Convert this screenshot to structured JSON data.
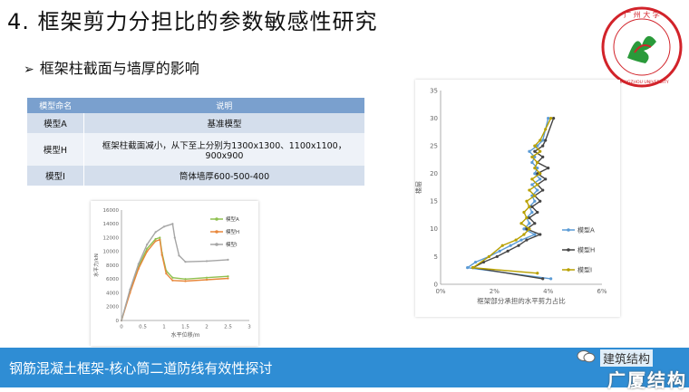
{
  "header": {
    "title": "4.   框架剪力分担比的参数敏感性研究",
    "subtitle_arrow": "➢",
    "subtitle": "框架柱截面与墙厚的影响"
  },
  "logo": {
    "top_text": "广 州 大 学",
    "bottom_text": "GUANGZHOU UNIVERSITY",
    "color": "#d2232a"
  },
  "table": {
    "headers": [
      "模型命名",
      "说明"
    ],
    "rows": [
      [
        "模型A",
        "基准模型"
      ],
      [
        "模型H",
        "框架柱截面减小，从下至上分别为1300x1300、1100x1100，900x900"
      ],
      [
        "模型I",
        "筒体墙厚600-500-400"
      ]
    ]
  },
  "chart_data": [
    {
      "type": "line",
      "xlabel": "水平位移/m",
      "ylabel": "水平力/kN",
      "xlim": [
        0,
        3
      ],
      "ylim": [
        0,
        16000
      ],
      "x_ticks": [
        "0",
        "0.5",
        "1",
        "1.5",
        "2",
        "2.5",
        "3"
      ],
      "y_ticks": [
        "0",
        "2000",
        "4000",
        "6000",
        "8000",
        "10000",
        "12000",
        "14000",
        "16000"
      ],
      "legend_position": "top-right",
      "series": [
        {
          "name": "模型A",
          "color": "#8fc04f",
          "x": [
            0,
            0.2,
            0.4,
            0.6,
            0.8,
            0.9,
            0.95,
            1.05,
            1.2,
            1.5,
            2.0,
            2.5
          ],
          "y": [
            0,
            4300,
            7800,
            10400,
            11800,
            12000,
            9800,
            7200,
            6200,
            6000,
            6200,
            6400
          ]
        },
        {
          "name": "模型H",
          "color": "#e8873a",
          "x": [
            0,
            0.2,
            0.4,
            0.6,
            0.8,
            0.9,
            0.95,
            1.05,
            1.2,
            1.5,
            2.0,
            2.5
          ],
          "y": [
            0,
            4000,
            7500,
            10000,
            11500,
            11700,
            9500,
            6800,
            5800,
            5700,
            5900,
            6100
          ]
        },
        {
          "name": "模型I",
          "color": "#a5a5a5",
          "x": [
            0,
            0.2,
            0.4,
            0.6,
            0.8,
            1.0,
            1.2,
            1.25,
            1.35,
            1.5,
            2.0,
            2.5
          ],
          "y": [
            0,
            4500,
            8200,
            11000,
            12800,
            13600,
            14000,
            12000,
            9400,
            8500,
            8600,
            8800
          ]
        }
      ]
    },
    {
      "type": "line",
      "xlabel": "框架部分承担的水平剪力占比",
      "ylabel": "楼层",
      "xlim": [
        0,
        6
      ],
      "ylim": [
        0,
        35
      ],
      "x_ticks": [
        "0%",
        "2%",
        "4%",
        "6%"
      ],
      "y_ticks": [
        "0",
        "5",
        "10",
        "15",
        "20",
        "25",
        "30",
        "35"
      ],
      "legend_position": "right",
      "series": [
        {
          "name": "模型A",
          "color": "#5b9bd5",
          "x": [
            4.1,
            1.0,
            1.3,
            1.8,
            2.2,
            2.6,
            3.0,
            3.5,
            3.1,
            3.3,
            3.2,
            3.4,
            3.3,
            3.5,
            3.4,
            3.6,
            3.4,
            3.7,
            3.5,
            3.6,
            3.4,
            3.5,
            3.3,
            3.6,
            3.8,
            4.0
          ],
          "y": [
            1,
            3,
            4,
            5,
            6,
            7,
            8,
            9,
            10,
            11,
            12,
            13,
            14,
            15,
            16,
            17,
            18,
            19,
            20,
            21,
            22,
            23,
            24,
            25,
            26,
            30
          ]
        },
        {
          "name": "模型H",
          "color": "#444444",
          "x": [
            3.8,
            1.2,
            1.6,
            2.1,
            2.5,
            2.9,
            3.2,
            3.7,
            3.2,
            3.5,
            3.3,
            3.6,
            3.4,
            3.7,
            3.5,
            3.8,
            3.6,
            3.9,
            3.6,
            4.0,
            3.6,
            3.8,
            3.5,
            3.8,
            3.9,
            4.2
          ],
          "y": [
            1,
            3,
            4,
            5,
            6,
            7,
            8,
            9,
            10,
            11,
            12,
            13,
            14,
            15,
            16,
            17,
            18,
            19,
            20,
            21,
            22,
            23,
            24,
            25,
            26,
            30
          ]
        },
        {
          "name": "模型I",
          "color": "#b8a000",
          "x": [
            3.6,
            1.2,
            1.8,
            2.3,
            2.8,
            3.1,
            3.3,
            3.0,
            3.2,
            3.1,
            3.3,
            3.2,
            3.5,
            3.3,
            3.6,
            3.4,
            3.7,
            3.5,
            3.6,
            3.4,
            3.7,
            3.5,
            3.7,
            3.9,
            4.1
          ],
          "y": [
            2,
            3,
            5,
            7,
            8,
            9,
            10,
            11,
            12,
            13,
            14,
            15,
            16,
            17,
            18,
            19,
            20,
            21,
            22,
            23,
            24,
            25,
            26,
            28,
            30
          ]
        }
      ]
    }
  ],
  "footer": {
    "banner_text": "钢筋混凝土框架-核心筒二道防线有效性探讨",
    "watermark_text": "建筑结构",
    "watermark_big": "广厦结构"
  }
}
